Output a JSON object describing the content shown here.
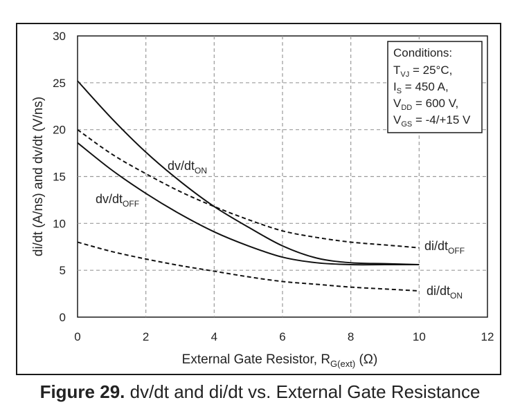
{
  "chart_data": {
    "type": "line",
    "xlabel_main": "External Gate Resistor, R",
    "xlabel_sub": "G(ext)",
    "xlabel_unit": " (Ω)",
    "ylabel": "di/dt (A/ns) and dv/dt (V/ns)",
    "xlim": [
      0,
      12
    ],
    "ylim": [
      0,
      30
    ],
    "x_ticks": [
      "0",
      "2",
      "4",
      "6",
      "8",
      "10",
      "12"
    ],
    "y_ticks": [
      "0",
      "5",
      "10",
      "15",
      "20",
      "25",
      "30"
    ],
    "grid": true,
    "series": [
      {
        "main": "dv/dt",
        "sub": "ON",
        "style": "solid",
        "x": [
          0,
          1,
          2,
          3,
          4,
          5,
          6,
          7,
          8,
          9,
          10
        ],
        "y": [
          25.2,
          21.2,
          17.6,
          14.5,
          11.8,
          9.6,
          7.6,
          6.3,
          5.8,
          5.7,
          5.6
        ]
      },
      {
        "main": "dv/dt",
        "sub": "OFF",
        "style": "solid",
        "x": [
          0,
          1,
          2,
          3,
          4,
          5,
          6,
          7,
          8,
          9,
          10
        ],
        "y": [
          18.6,
          15.7,
          13.2,
          11.0,
          9.1,
          7.6,
          6.4,
          5.8,
          5.6,
          5.6,
          5.6
        ]
      },
      {
        "main": "di/dt",
        "sub": "OFF",
        "style": "dashed",
        "x": [
          0,
          1,
          2,
          3,
          4,
          5,
          6,
          7,
          8,
          9,
          10
        ],
        "y": [
          20.0,
          17.4,
          15.3,
          13.4,
          11.8,
          10.4,
          9.2,
          8.5,
          8.0,
          7.7,
          7.4
        ]
      },
      {
        "main": "di/dt",
        "sub": "ON",
        "style": "dashed",
        "x": [
          0,
          1,
          2,
          3,
          4,
          5,
          6,
          7,
          8,
          9,
          10
        ],
        "y": [
          8.0,
          7.0,
          6.2,
          5.5,
          4.9,
          4.3,
          3.8,
          3.5,
          3.2,
          3.0,
          2.8
        ]
      }
    ],
    "conditions": {
      "title": "Conditions:",
      "lines": [
        {
          "pre": "T",
          "sub": "VJ",
          "post": " = 25°C,"
        },
        {
          "pre": "I",
          "sub": "S",
          "post": " = 450 A,"
        },
        {
          "pre": "V",
          "sub": "DD",
          "post": " = 600 V,"
        },
        {
          "pre": "V",
          "sub": "GS",
          "post": " = -4/+15 V"
        }
      ]
    }
  },
  "caption": {
    "label": "Figure 29.",
    "text": " dv/dt and di/dt vs. External Gate Resistance"
  }
}
